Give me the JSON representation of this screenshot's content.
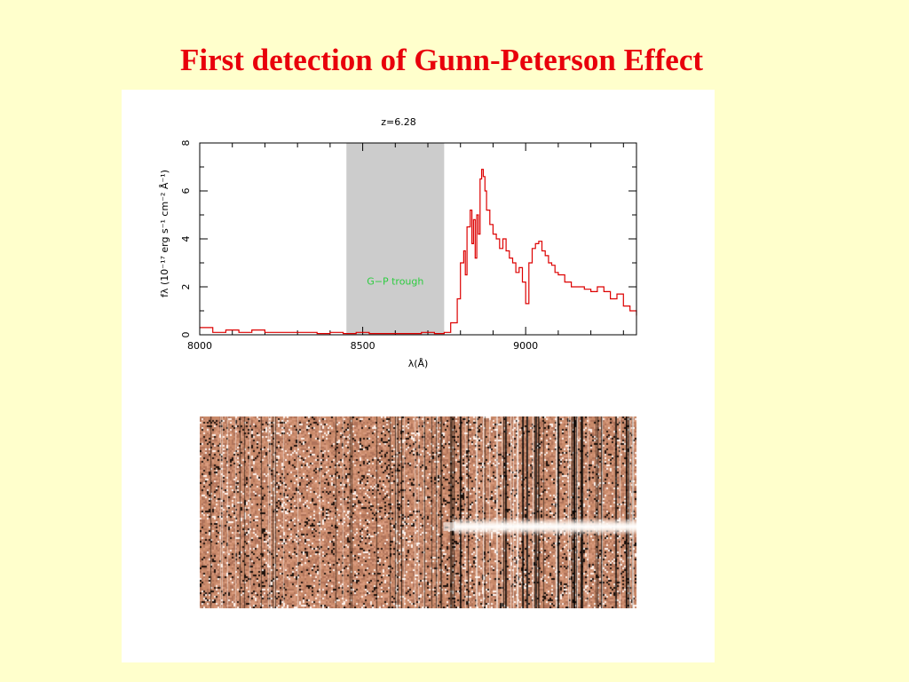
{
  "slide": {
    "title": "First detection of Gunn-Peterson  Effect"
  },
  "chart_data": {
    "type": "line",
    "title": "z=6.28",
    "xlabel": "λ(Å)",
    "ylabel": "fλ (10⁻¹⁷ erg s⁻¹ cm⁻² Å⁻¹)",
    "xlim": [
      8000,
      9340
    ],
    "ylim": [
      0,
      8
    ],
    "x_ticks": [
      8000,
      8500,
      9000
    ],
    "y_ticks": [
      0,
      2,
      4,
      6,
      8
    ],
    "shaded_region": {
      "x": [
        8450,
        8750
      ],
      "label": "G−P trough",
      "color": "#cccccc",
      "label_color": "#2ecc40"
    },
    "zero_line": "dashed",
    "series": [
      {
        "color": "#dd0000",
        "x": [
          8000,
          8040,
          8080,
          8120,
          8160,
          8200,
          8240,
          8280,
          8320,
          8360,
          8400,
          8440,
          8480,
          8520,
          8560,
          8600,
          8640,
          8680,
          8720,
          8750,
          8770,
          8790,
          8800,
          8810,
          8815,
          8820,
          8830,
          8835,
          8840,
          8845,
          8850,
          8855,
          8860,
          8865,
          8870,
          8875,
          8880,
          8890,
          8900,
          8910,
          8920,
          8930,
          8940,
          8950,
          8960,
          8970,
          8980,
          8990,
          9000,
          9010,
          9020,
          9030,
          9040,
          9050,
          9060,
          9070,
          9080,
          9090,
          9100,
          9120,
          9140,
          9160,
          9180,
          9200,
          9220,
          9240,
          9260,
          9280,
          9300,
          9320,
          9340
        ],
        "y": [
          0.3,
          0.1,
          0.2,
          0.1,
          0.2,
          0.1,
          0.1,
          0.1,
          0.1,
          0.05,
          0.1,
          0.05,
          0.1,
          0.05,
          0.05,
          0.05,
          0.05,
          0.1,
          0.05,
          0.1,
          0.5,
          1.5,
          3.0,
          3.5,
          2.5,
          4.5,
          5.2,
          3.8,
          4.8,
          3.2,
          5.0,
          4.2,
          6.5,
          6.9,
          6.6,
          6.0,
          5.2,
          4.6,
          4.2,
          4.0,
          3.6,
          4.0,
          3.5,
          3.2,
          3.0,
          2.6,
          2.8,
          2.2,
          1.3,
          3.0,
          3.6,
          3.8,
          3.9,
          3.5,
          3.3,
          3.0,
          2.9,
          2.6,
          2.5,
          2.2,
          2.0,
          2.0,
          1.9,
          1.8,
          2.0,
          1.8,
          1.5,
          1.7,
          1.2,
          1.0,
          0.8
        ]
      }
    ],
    "spectrum_2d": {
      "background_color": "#c98a6a",
      "trace_start_wavelength": 8780,
      "trace_color": "#ffffff"
    }
  }
}
